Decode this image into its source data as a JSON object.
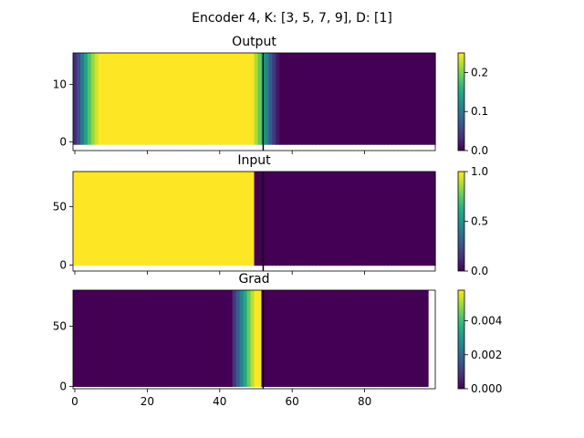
{
  "figure": {
    "suptitle": "Encoder 4, K: [3, 5, 7, 9], D: [1]"
  },
  "chart_data": [
    {
      "type": "heatmap",
      "title": "Output",
      "colormap": "viridis",
      "n_columns": 100,
      "xlim": [
        -0.5,
        99.5
      ],
      "ylim": [
        -1.5,
        15.5
      ],
      "yticks": [
        {
          "v": 0,
          "label": "0"
        },
        {
          "v": 10,
          "label": "10"
        }
      ],
      "rows_fill_to": 15.5,
      "rows_fill_from": -0.5,
      "column_values": [
        0.03,
        0.06,
        0.1,
        0.14,
        0.18,
        0.21,
        0.235,
        0.25,
        0.25,
        0.25,
        0.25,
        0.25,
        0.25,
        0.25,
        0.25,
        0.25,
        0.25,
        0.25,
        0.25,
        0.25,
        0.25,
        0.25,
        0.25,
        0.25,
        0.25,
        0.25,
        0.25,
        0.25,
        0.25,
        0.25,
        0.25,
        0.25,
        0.25,
        0.25,
        0.25,
        0.25,
        0.25,
        0.25,
        0.25,
        0.25,
        0.25,
        0.25,
        0.25,
        0.25,
        0.25,
        0.25,
        0.25,
        0.25,
        0.25,
        0.25,
        0.22,
        0.19,
        0.15,
        0.11,
        0.07,
        0.04,
        0.015,
        0,
        0,
        0,
        0,
        0,
        0,
        0,
        0,
        0,
        0,
        0,
        0,
        0,
        0,
        0,
        0,
        0,
        0,
        0,
        0,
        0,
        0,
        0,
        0,
        0,
        0,
        0,
        0,
        0,
        0,
        0,
        0,
        0,
        0,
        0,
        0,
        0,
        0,
        0,
        0,
        0,
        0,
        0
      ],
      "vline_x": 52,
      "colorbar": {
        "range": [
          0,
          0.25
        ],
        "ticks": [
          {
            "v": 0.0,
            "label": "0.0"
          },
          {
            "v": 0.1,
            "label": "0.1"
          },
          {
            "v": 0.2,
            "label": "0.2"
          }
        ]
      }
    },
    {
      "type": "heatmap",
      "title": "Input",
      "colormap": "viridis",
      "n_columns": 100,
      "xlim": [
        -0.5,
        99.5
      ],
      "ylim": [
        -5,
        80
      ],
      "yticks": [
        {
          "v": 0,
          "label": "0"
        },
        {
          "v": 50,
          "label": "50"
        }
      ],
      "rows_fill_to": 80,
      "rows_fill_from": -0.5,
      "column_values": [
        1,
        1,
        1,
        1,
        1,
        1,
        1,
        1,
        1,
        1,
        1,
        1,
        1,
        1,
        1,
        1,
        1,
        1,
        1,
        1,
        1,
        1,
        1,
        1,
        1,
        1,
        1,
        1,
        1,
        1,
        1,
        1,
        1,
        1,
        1,
        1,
        1,
        1,
        1,
        1,
        1,
        1,
        1,
        1,
        1,
        1,
        1,
        1,
        1,
        1,
        0,
        0,
        0,
        0,
        0,
        0,
        0,
        0,
        0,
        0,
        0,
        0,
        0,
        0,
        0,
        0,
        0,
        0,
        0,
        0,
        0,
        0,
        0,
        0,
        0,
        0,
        0,
        0,
        0,
        0,
        0,
        0,
        0,
        0,
        0,
        0,
        0,
        0,
        0,
        0,
        0,
        0,
        0,
        0,
        0,
        0,
        0,
        0,
        0,
        0
      ],
      "vline_x": 52,
      "colorbar": {
        "range": [
          0,
          1
        ],
        "ticks": [
          {
            "v": 0.0,
            "label": "0.0"
          },
          {
            "v": 0.5,
            "label": "0.5"
          },
          {
            "v": 1.0,
            "label": "1.0"
          }
        ]
      }
    },
    {
      "type": "heatmap",
      "title": "Grad",
      "colormap": "viridis",
      "n_columns": 100,
      "xlim": [
        -0.5,
        99.5
      ],
      "ylim": [
        -2,
        80
      ],
      "yticks": [
        {
          "v": 0,
          "label": "0"
        },
        {
          "v": 50,
          "label": "50"
        }
      ],
      "xticks": [
        {
          "v": 0,
          "label": "0"
        },
        {
          "v": 20,
          "label": "20"
        },
        {
          "v": 40,
          "label": "40"
        },
        {
          "v": 60,
          "label": "60"
        },
        {
          "v": 80,
          "label": "80"
        }
      ],
      "rows_fill_to": 80,
      "rows_fill_from": -0.5,
      "column_values": [
        0,
        0,
        0,
        0,
        0,
        0,
        0,
        0,
        0,
        0,
        0,
        0,
        0,
        0,
        0,
        0,
        0,
        0,
        0,
        0,
        0,
        0,
        0,
        0,
        0,
        0,
        0,
        0,
        0,
        0,
        0,
        0,
        0,
        0,
        0,
        0,
        0,
        0,
        0,
        0,
        0,
        0,
        0,
        0,
        0.0009,
        0.0017,
        0.0026,
        0.0034,
        0.0044,
        0.0052,
        0.0058,
        0.0058,
        0,
        0,
        0,
        0,
        0,
        0,
        0,
        0,
        0,
        0,
        0,
        0,
        0,
        0,
        0,
        0,
        0,
        0,
        0,
        0,
        0,
        0,
        0,
        0,
        0,
        0,
        0,
        0,
        0,
        0,
        0,
        0,
        0,
        0,
        0,
        0,
        0,
        0,
        0,
        0,
        0,
        0,
        0,
        0,
        0,
        0
      ],
      "vline_x": 52,
      "colorbar": {
        "range": [
          0,
          0.0058
        ],
        "ticks": [
          {
            "v": 0.0,
            "label": "0.000"
          },
          {
            "v": 0.002,
            "label": "0.002"
          },
          {
            "v": 0.004,
            "label": "0.004"
          }
        ]
      }
    }
  ]
}
